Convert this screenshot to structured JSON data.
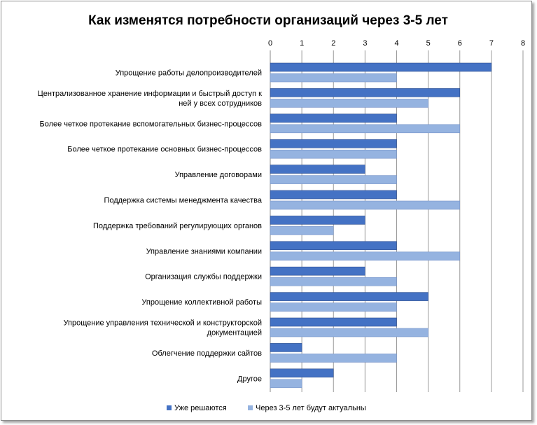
{
  "chart_data": {
    "type": "bar",
    "orientation": "horizontal",
    "title": "Как изменятся потребности организаций через 3-5 лет",
    "xlim": [
      0,
      8
    ],
    "x_ticks": [
      "0",
      "1",
      "2",
      "3",
      "4",
      "5",
      "6",
      "7",
      "8"
    ],
    "x_axis_position": "top",
    "grid": true,
    "legend_position": "bottom",
    "categories": [
      [
        "Упрощение работы делопроизводителей"
      ],
      [
        "Централизованное хранение информации и быстрый доступ к",
        "ней у всех сотрудников"
      ],
      [
        "Более четкое протекание вспомогательных бизнес-процессов"
      ],
      [
        "Более четкое протекание основных бизнес-процессов"
      ],
      [
        "Управление договорами"
      ],
      [
        "Поддержка системы менеджмента качества"
      ],
      [
        "Поддержка требований регулирующих органов"
      ],
      [
        "Управление знаниями компании"
      ],
      [
        "Организация службы поддержки"
      ],
      [
        "Упрощение коллективной работы"
      ],
      [
        "Упрощение управления технической и конструкторской",
        "документацией"
      ],
      [
        "Облегчение поддержки сайтов"
      ],
      [
        "Другое"
      ]
    ],
    "series": [
      {
        "name": "Уже решаются",
        "color": "#4472c4",
        "values": [
          7,
          6,
          4,
          4,
          3,
          4,
          3,
          4,
          3,
          5,
          4,
          1,
          2
        ]
      },
      {
        "name": "Через 3-5 лет будут актуальны",
        "color": "#95b3e0",
        "values": [
          4,
          5,
          6,
          4,
          4,
          6,
          2,
          6,
          4,
          4,
          5,
          4,
          1
        ]
      }
    ]
  }
}
